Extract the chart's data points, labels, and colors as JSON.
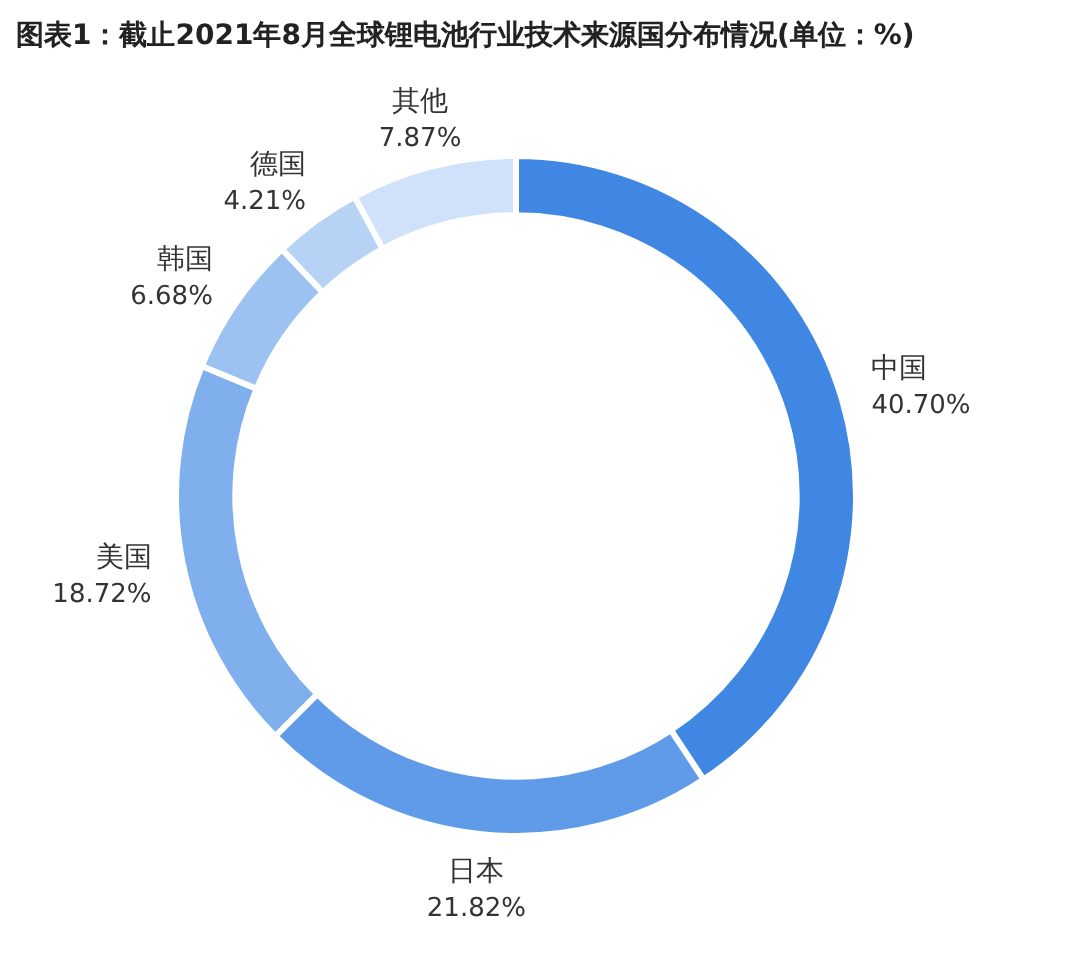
{
  "chart_data": {
    "type": "donut",
    "title": "图表1：截止2021年8月全球锂电池行业技术来源国分布情况(单位：%)",
    "categories": [
      "中国",
      "日本",
      "美国",
      "韩国",
      "德国",
      "其他"
    ],
    "values": [
      40.7,
      21.82,
      18.72,
      6.68,
      4.21,
      7.87
    ],
    "value_labels": [
      "40.70%",
      "21.82%",
      "18.72%",
      "6.68%",
      "4.21%",
      "7.87%"
    ],
    "colors": [
      "#3f87e3",
      "#5f9be8",
      "#7fafed",
      "#9cc2f1",
      "#b6d2f5",
      "#cfe2fa"
    ]
  }
}
